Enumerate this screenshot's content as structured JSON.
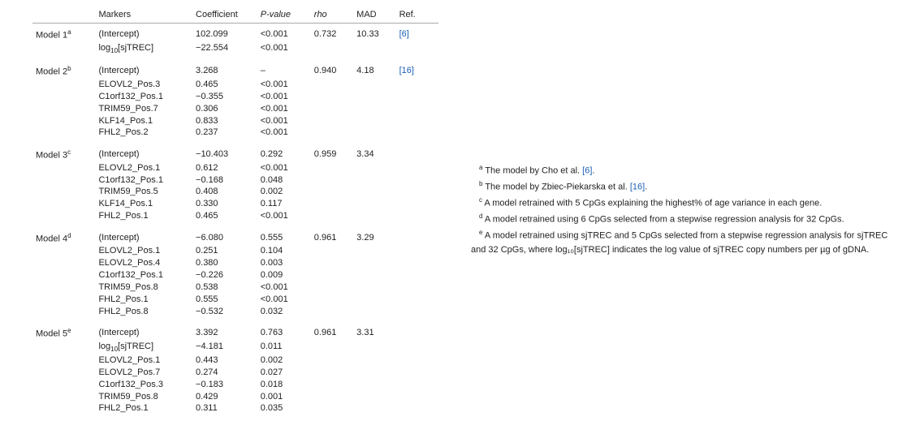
{
  "table": {
    "headers": [
      "",
      "Markers",
      "Coefficient",
      "P-value",
      "rho",
      "MAD",
      "Ref."
    ],
    "models": [
      {
        "name": "Model 1",
        "sup": "a",
        "rho": "0.732",
        "mad": "10.33",
        "ref": "[6]",
        "rows": [
          {
            "marker": "(Intercept)",
            "coef": "102.099",
            "p": "<0.001"
          },
          {
            "marker": "log10_sjTREC",
            "coef": "−22.554",
            "p": "<0.001"
          }
        ]
      },
      {
        "name": "Model 2",
        "sup": "b",
        "rho": "0.940",
        "mad": "4.18",
        "ref": "[16]",
        "rows": [
          {
            "marker": "(Intercept)",
            "coef": "3.268",
            "p": "–"
          },
          {
            "marker": "ELOVL2_Pos.3",
            "coef": "0.465",
            "p": "<0.001"
          },
          {
            "marker": "C1orf132_Pos.1",
            "coef": "−0.355",
            "p": "<0.001"
          },
          {
            "marker": "TRIM59_Pos.7",
            "coef": "0.306",
            "p": "<0.001"
          },
          {
            "marker": "KLF14_Pos.1",
            "coef": "0.833",
            "p": "<0.001"
          },
          {
            "marker": "FHL2_Pos.2",
            "coef": "0.237",
            "p": "<0.001"
          }
        ]
      },
      {
        "name": "Model 3",
        "sup": "c",
        "rho": "0.959",
        "mad": "3.34",
        "ref": "",
        "rows": [
          {
            "marker": "(Intercept)",
            "coef": "−10.403",
            "p": "0.292"
          },
          {
            "marker": "ELOVL2_Pos.1",
            "coef": "0.612",
            "p": "<0.001"
          },
          {
            "marker": "C1orf132_Pos.1",
            "coef": "−0.168",
            "p": "0.048"
          },
          {
            "marker": "TRIM59_Pos.5",
            "coef": "0.408",
            "p": "0.002"
          },
          {
            "marker": "KLF14_Pos.1",
            "coef": "0.330",
            "p": "0.117"
          },
          {
            "marker": "FHL2_Pos.1",
            "coef": "0.465",
            "p": "<0.001"
          }
        ]
      },
      {
        "name": "Model 4",
        "sup": "d",
        "rho": "0.961",
        "mad": "3.29",
        "ref": "",
        "rows": [
          {
            "marker": "(Intercept)",
            "coef": "−6.080",
            "p": "0.555"
          },
          {
            "marker": "ELOVL2_Pos.1",
            "coef": "0.251",
            "p": "0.104"
          },
          {
            "marker": "ELOVL2_Pos.4",
            "coef": "0.380",
            "p": "0.003"
          },
          {
            "marker": "C1orf132_Pos.1",
            "coef": "−0.226",
            "p": "0.009"
          },
          {
            "marker": "TRIM59_Pos.8",
            "coef": "0.538",
            "p": "<0.001"
          },
          {
            "marker": "FHL2_Pos.1",
            "coef": "0.555",
            "p": "<0.001"
          },
          {
            "marker": "FHL2_Pos.8",
            "coef": "−0.532",
            "p": "0.032"
          }
        ]
      },
      {
        "name": "Model 5",
        "sup": "e",
        "rho": "0.961",
        "mad": "3.31",
        "ref": "",
        "rows": [
          {
            "marker": "(Intercept)",
            "coef": "3.392",
            "p": "0.763"
          },
          {
            "marker": "log10_sjTREC",
            "coef": "−4.181",
            "p": "0.011"
          },
          {
            "marker": "ELOVL2_Pos.1",
            "coef": "0.443",
            "p": "0.002"
          },
          {
            "marker": "ELOVL2_Pos.7",
            "coef": "0.274",
            "p": "0.027"
          },
          {
            "marker": "C1orf132_Pos.3",
            "coef": "−0.183",
            "p": "0.018"
          },
          {
            "marker": "TRIM59_Pos.8",
            "coef": "0.429",
            "p": "0.001"
          },
          {
            "marker": "FHL2_Pos.1",
            "coef": "0.311",
            "p": "0.035"
          }
        ]
      }
    ]
  },
  "footnotes": {
    "a_pre": "The model by Cho et al. ",
    "a_ref": "[6]",
    "a_post": ".",
    "b_pre": "The model by Zbiec-Piekarska et al. ",
    "b_ref": "[16]",
    "b_post": ".",
    "c": "A model retrained with 5 CpGs explaining the highest% of age variance in each gene.",
    "d": "A model retrained using 6 CpGs selected from a stepwise regression analysis for 32 CpGs.",
    "e": "A model retrained using sjTREC and 5 CpGs selected from a stepwise regression analysis for sjTREC and 32 CpGs, where log₁₀[sjTREC] indicates the log value of sjTREC copy numbers per µg of gDNA."
  },
  "colors": {
    "text": "#222222",
    "ref_link": "#1a5fb4",
    "rule": "#aaaaaa",
    "bg": "#ffffff"
  },
  "fonts": {
    "family": "Arial",
    "size_pt": 8.5
  }
}
